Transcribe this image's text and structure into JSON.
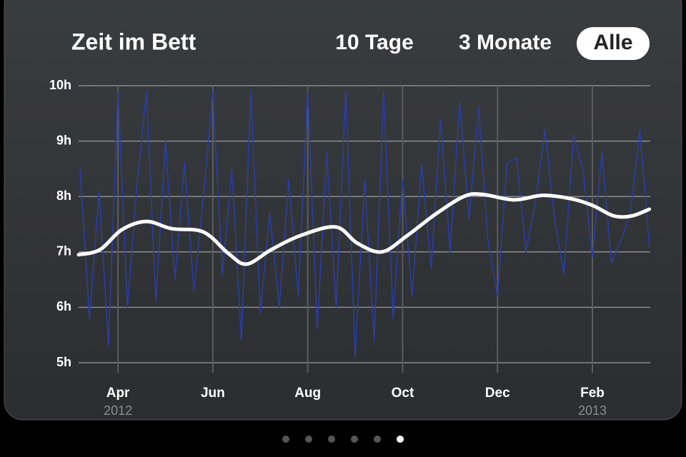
{
  "chart_data": {
    "type": "line",
    "title": "Zeit im Bett",
    "buttons": [
      "10 Tage",
      "3 Monate",
      "Alle"
    ],
    "selected_button": 2,
    "xlim": [
      3.17,
      15.22
    ],
    "xticks": [
      {
        "value": 4,
        "label": "Apr"
      },
      {
        "value": 6,
        "label": "Jun"
      },
      {
        "value": 8,
        "label": "Aug"
      },
      {
        "value": 10,
        "label": "Oct"
      },
      {
        "value": 12,
        "label": "Dec"
      },
      {
        "value": 14,
        "label": "Feb"
      }
    ],
    "year_labels": [
      {
        "value": 4,
        "label": "2012"
      },
      {
        "value": 14,
        "label": "2013"
      }
    ],
    "ylim": [
      5,
      10
    ],
    "yticks": [
      {
        "value": 5,
        "label": "5h"
      },
      {
        "value": 6,
        "label": "6h"
      },
      {
        "value": 7,
        "label": "7h"
      },
      {
        "value": 8,
        "label": "8h"
      },
      {
        "value": 9,
        "label": "9h"
      },
      {
        "value": 10,
        "label": "10h"
      }
    ],
    "grid": true,
    "series": [
      {
        "color": "#2a3fa8",
        "width": 1.5,
        "x": [
          3.2,
          3.4,
          3.6,
          3.8,
          4.0,
          4.2,
          4.4,
          4.6,
          4.8,
          5.0,
          5.2,
          5.4,
          5.6,
          5.8,
          6.0,
          6.2,
          6.4,
          6.6,
          6.8,
          7.0,
          7.2,
          7.4,
          7.6,
          7.8,
          8.0,
          8.2,
          8.4,
          8.6,
          8.8,
          9.0,
          9.2,
          9.4,
          9.6,
          9.8,
          10.0,
          10.2,
          10.4,
          10.6,
          10.8,
          11.0,
          11.2,
          11.4,
          11.6,
          11.8,
          12.0,
          12.2,
          12.4,
          12.6,
          12.8,
          13.0,
          13.2,
          13.4,
          13.6,
          13.8,
          14.0,
          14.2,
          14.4,
          14.6,
          14.8,
          15.0,
          15.2
        ],
        "values": [
          8.5,
          5.8,
          8.1,
          5.3,
          9.9,
          6.0,
          8.2,
          9.9,
          6.1,
          9.0,
          6.5,
          8.6,
          6.3,
          8.0,
          9.9,
          6.6,
          8.5,
          5.4,
          9.9,
          5.9,
          7.7,
          6.0,
          8.3,
          6.2,
          9.9,
          5.6,
          8.8,
          6.0,
          9.9,
          5.1,
          8.3,
          5.4,
          9.9,
          5.8,
          8.3,
          6.2,
          8.6,
          6.7,
          9.4,
          7.0,
          9.7,
          7.6,
          9.6,
          7.2,
          6.2,
          8.6,
          8.7,
          7.0,
          7.9,
          9.2,
          7.6,
          6.6,
          9.1,
          8.5,
          6.9,
          8.8,
          6.8,
          7.2,
          7.7,
          9.2,
          7.1
        ]
      },
      {
        "color": "#ffffff",
        "width": 5,
        "x": [
          3.17,
          3.62,
          4.08,
          4.6,
          5.13,
          5.8,
          6.33,
          6.71,
          7.23,
          7.83,
          8.59,
          9.04,
          9.56,
          10.09,
          10.69,
          11.29,
          11.67,
          12.35,
          12.95,
          13.55,
          14.0,
          14.45,
          14.83,
          15.2
        ],
        "values": [
          6.95,
          7.04,
          7.4,
          7.55,
          7.42,
          7.36,
          6.97,
          6.78,
          7.04,
          7.29,
          7.45,
          7.16,
          7.0,
          7.29,
          7.68,
          8.0,
          8.04,
          7.94,
          8.02,
          7.96,
          7.84,
          7.65,
          7.65,
          7.77
        ]
      }
    ]
  }
}
